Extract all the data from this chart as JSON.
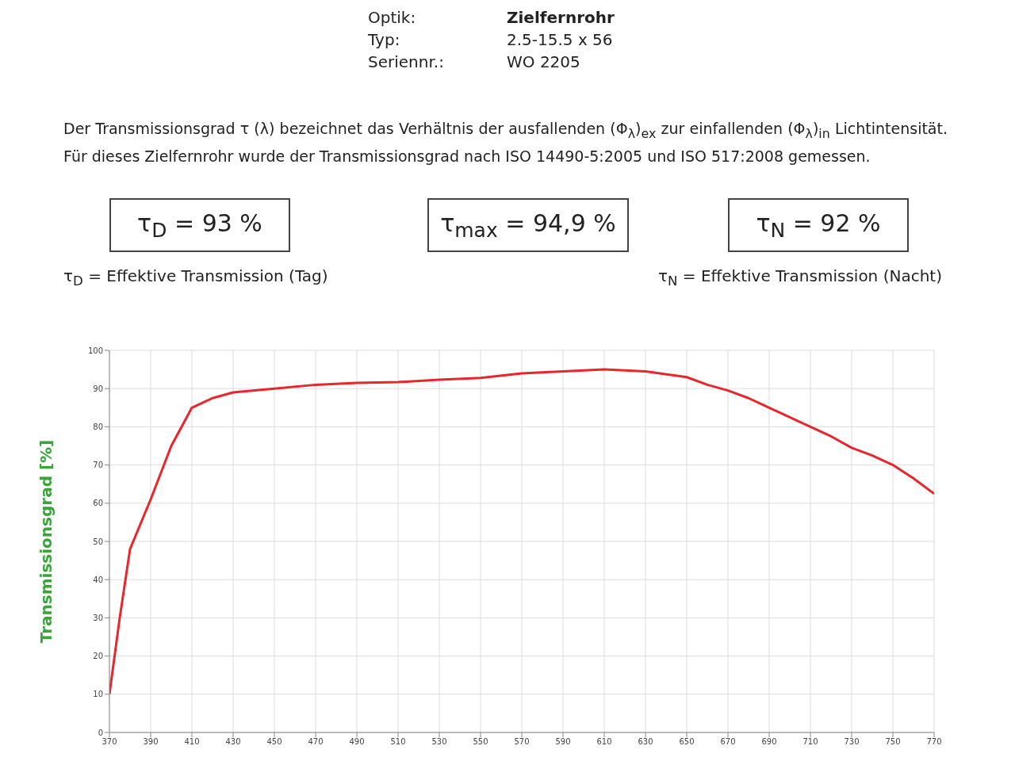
{
  "chart_data": {
    "type": "line",
    "ylabel": "Transmissionsgrad [%]",
    "annotations": [
      "Optik:",
      "Zielfernrohr",
      "Typ:",
      "2.5-15.5 x 56",
      "Seriennr.:",
      "WO 2205",
      "Der Transmissionsgrad τ (λ) bezeichnet das Verhältnis der ausfallenden (Φ$_{λ}$)$_{ex}$ zur einfallenden (Φ$_{λ}$)$_{in}$ Lichtintensität. Für dieses Zielfernrohr wurde der Transmissionsgrad nach ISO 14490-5:2005 und ISO 517:2008 gemessen.",
      "τ$_{D}$ = 93 %",
      "τ$_{max}$ = 94,9 %",
      "τ$_{N}$ = 92 %",
      "τ$_{D}$ = Effektive Transmission (Tag)",
      "τ$_{N}$ = Effektive Transmission (Nacht)"
    ],
    "x": [
      370,
      375,
      380,
      390,
      400,
      410,
      420,
      430,
      450,
      470,
      490,
      510,
      530,
      550,
      570,
      590,
      610,
      630,
      650,
      660,
      670,
      680,
      690,
      700,
      710,
      720,
      730,
      740,
      750,
      760,
      770
    ],
    "series": [
      {
        "color": "#e8262b",
        "values": [
          10,
          30,
          48,
          61,
          75,
          85,
          87.5,
          89,
          90,
          91,
          91.5,
          91.7,
          92.3,
          92.8,
          94,
          94.5,
          95,
          94.5,
          93,
          91,
          89.5,
          87.5,
          85,
          82.5,
          80,
          77.5,
          74.5,
          72.5,
          70,
          66.5,
          62.5
        ]
      }
    ],
    "xlim": [
      370,
      770
    ],
    "xticks": [
      370,
      390,
      410,
      430,
      450,
      470,
      490,
      510,
      530,
      550,
      570,
      590,
      610,
      630,
      650,
      670,
      690,
      710,
      730,
      750,
      770
    ],
    "ylim": [
      0,
      100
    ],
    "yticks": [
      0,
      10,
      20,
      30,
      40,
      50,
      60,
      70,
      80,
      90,
      100
    ],
    "grid": true
  }
}
